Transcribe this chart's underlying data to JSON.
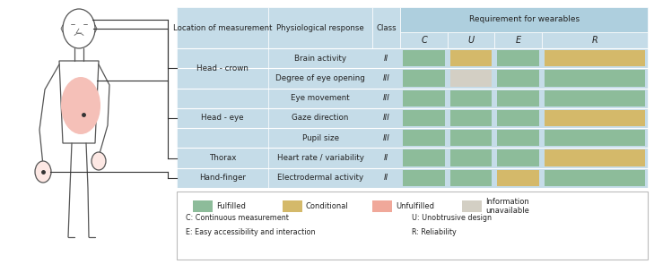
{
  "table_bg": "#c5dce8",
  "header_bg": "#aecfde",
  "cell_green": "#8dbc9a",
  "cell_yellow": "#d4b96a",
  "cell_pink": "#f0a89a",
  "cell_gray": "#d3cfc4",
  "responses": [
    "Brain activity",
    "Degree of eye opening",
    "Eye movement",
    "Gaze direction",
    "Pupil size",
    "Heart rate / variability",
    "Electrodermal activity"
  ],
  "classes": [
    "II",
    "III",
    "III",
    "III",
    "III",
    "II",
    "II"
  ],
  "cuer_data": [
    [
      "green",
      "yellow",
      "green",
      "yellow"
    ],
    [
      "green",
      "gray",
      "green",
      "green"
    ],
    [
      "green",
      "green",
      "green",
      "green"
    ],
    [
      "green",
      "green",
      "green",
      "yellow"
    ],
    [
      "green",
      "green",
      "green",
      "green"
    ],
    [
      "green",
      "green",
      "green",
      "yellow"
    ],
    [
      "green",
      "green",
      "yellow",
      "green"
    ]
  ],
  "loc_spans": [
    {
      "label": "Head - crown",
      "r0": 0,
      "r1": 2
    },
    {
      "label": "Head - eye",
      "r0": 2,
      "r1": 5
    },
    {
      "label": "Thorax",
      "r0": 5,
      "r1": 6
    },
    {
      "label": "Hand-finger",
      "r0": 6,
      "r1": 7
    }
  ],
  "req_header": "Requirement for wearables",
  "cuer_labels": [
    "C",
    "U",
    "E",
    "R"
  ],
  "legend_items": [
    {
      "label": "Fulfilled",
      "color": "#8dbc9a"
    },
    {
      "label": "Conditional",
      "color": "#d4b96a"
    },
    {
      "label": "Unfulfilled",
      "color": "#f0a89a"
    },
    {
      "label": "Information\nunavailable",
      "color": "#d3cfc4"
    }
  ],
  "footnote_left1": "C: Continuous measurement",
  "footnote_left2": "E: Easy accessibility and interaction",
  "footnote_right1": "U: Unobtrusive design",
  "footnote_right2": "R: Reliability",
  "fig_width": 7.29,
  "fig_height": 2.95,
  "dpi": 100
}
